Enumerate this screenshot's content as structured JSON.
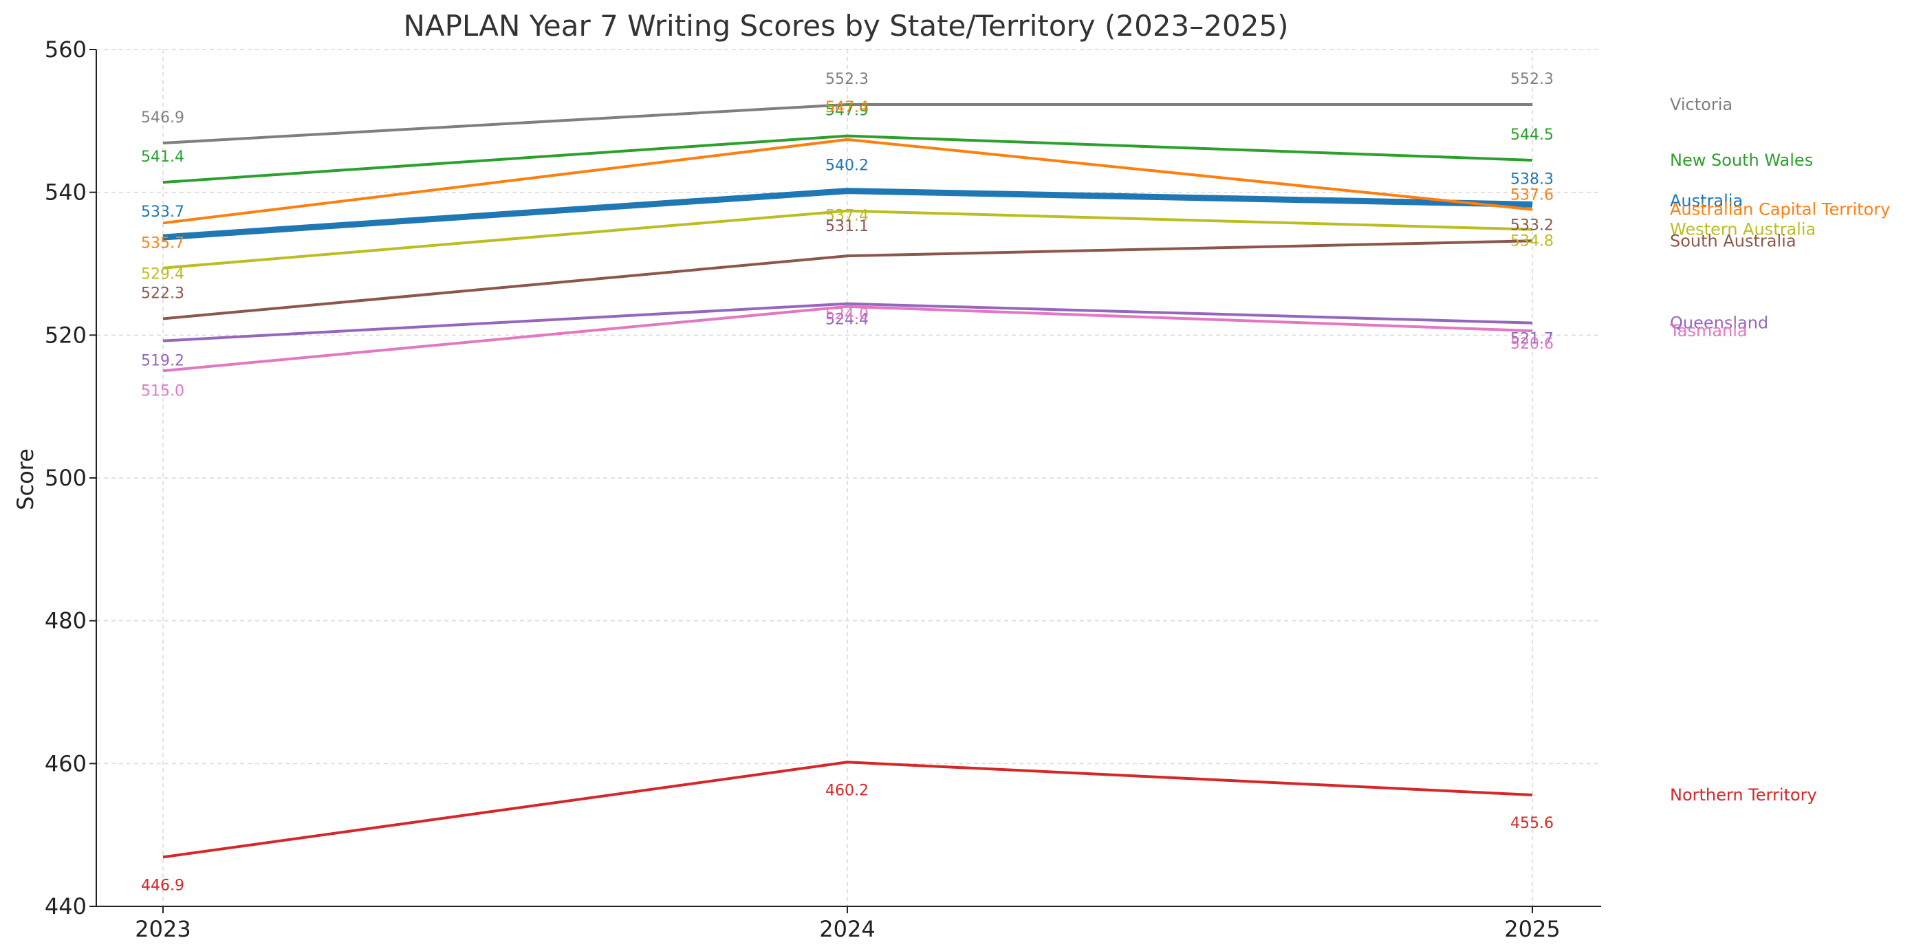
{
  "chart_data": {
    "type": "line",
    "title": "NAPLAN Year 7 Writing Scores by State/Territory (2023–2025)",
    "xlabel": "",
    "ylabel": "Score",
    "x": [
      "2023",
      "2024",
      "2025"
    ],
    "ylim": [
      440,
      560
    ],
    "yticks": [
      440,
      460,
      480,
      500,
      520,
      540,
      560
    ],
    "grid": true,
    "legend": "none; series names printed at the right end of each line",
    "series": [
      {
        "name": "Victoria",
        "color": "#7f7f7f",
        "values": [
          546.9,
          552.3,
          552.3
        ],
        "labels": [
          "546.9",
          "552.3",
          "552.3"
        ],
        "emphasis": false
      },
      {
        "name": "New South Wales",
        "color": "#2ca02c",
        "values": [
          541.4,
          547.9,
          544.5
        ],
        "labels": [
          "541.4",
          "547.9",
          "544.5"
        ],
        "emphasis": false
      },
      {
        "name": "Australia",
        "color": "#1f77b4",
        "values": [
          533.7,
          540.2,
          538.3
        ],
        "labels": [
          "533.7",
          "540.2",
          "538.3"
        ],
        "emphasis": true
      },
      {
        "name": "Australian Capital Territory",
        "color": "#ff7f0e",
        "values": [
          535.7,
          547.4,
          537.6
        ],
        "labels": [
          "535.7",
          "547.4",
          "537.6"
        ],
        "emphasis": false
      },
      {
        "name": "Western Australia",
        "color": "#bcbd22",
        "values": [
          529.4,
          537.4,
          534.8
        ],
        "labels": [
          "529.4",
          "537.4",
          "534.8"
        ],
        "emphasis": false
      },
      {
        "name": "South Australia",
        "color": "#8c564b",
        "values": [
          522.3,
          531.1,
          533.2
        ],
        "labels": [
          "522.3",
          "531.1",
          "533.2"
        ],
        "emphasis": false
      },
      {
        "name": "Queensland",
        "color": "#9467bd",
        "values": [
          519.2,
          524.4,
          521.7
        ],
        "labels": [
          "519.2",
          "524.4",
          "521.7"
        ],
        "emphasis": false
      },
      {
        "name": "Tasmania",
        "color": "#e377c2",
        "values": [
          515.0,
          524.0,
          520.6
        ],
        "labels": [
          "515.0",
          "524.0",
          "520.6"
        ],
        "emphasis": false
      },
      {
        "name": "Northern Territory",
        "color": "#d62728",
        "values": [
          446.9,
          460.2,
          455.6
        ],
        "labels": [
          "446.9",
          "460.2",
          "455.6"
        ],
        "emphasis": false
      }
    ]
  }
}
